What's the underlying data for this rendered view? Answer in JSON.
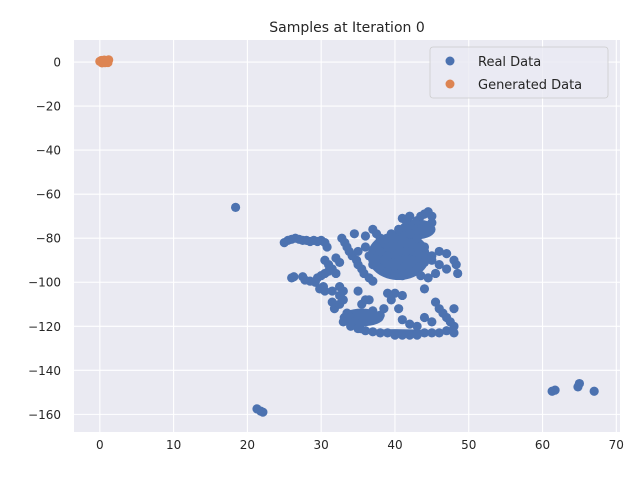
{
  "chart_data": {
    "type": "scatter",
    "title": "Samples at Iteration 0",
    "xlabel": "",
    "ylabel": "",
    "xlim": [
      -3.5,
      70.5
    ],
    "ylim": [
      -168,
      10
    ],
    "x_ticks": [
      0,
      10,
      20,
      30,
      40,
      50,
      60,
      70
    ],
    "y_ticks": [
      0,
      -20,
      -40,
      -60,
      -80,
      -100,
      -120,
      -140,
      -160
    ],
    "grid": true,
    "legend_position": "top-right",
    "colors": {
      "background": "#eaeaf2",
      "grid": "#ffffff",
      "real": "#4c72b0",
      "generated": "#dd8452"
    },
    "series": [
      {
        "name": "Real Data",
        "color": "#4c72b0",
        "points": [
          [
            18.4,
            -66
          ],
          [
            25,
            -82
          ],
          [
            25.5,
            -81
          ],
          [
            26,
            -80.5
          ],
          [
            26.5,
            -80
          ],
          [
            27,
            -80.5
          ],
          [
            27.5,
            -81
          ],
          [
            28,
            -81
          ],
          [
            28.5,
            -81.5
          ],
          [
            29,
            -81
          ],
          [
            29.5,
            -81.5
          ],
          [
            30,
            -81
          ],
          [
            30.5,
            -82
          ],
          [
            30.8,
            -84
          ],
          [
            26,
            -98
          ],
          [
            26.3,
            -97.5
          ],
          [
            27.5,
            -97.5
          ],
          [
            27.8,
            -99
          ],
          [
            28.5,
            -99.5
          ],
          [
            29.2,
            -100
          ],
          [
            29.5,
            -98
          ],
          [
            30,
            -97
          ],
          [
            30.5,
            -96
          ],
          [
            31,
            -95
          ],
          [
            29.8,
            -103
          ],
          [
            30.3,
            -102
          ],
          [
            30.5,
            -104
          ],
          [
            30.5,
            -90
          ],
          [
            31,
            -92
          ],
          [
            31.5,
            -94
          ],
          [
            32,
            -96
          ],
          [
            32,
            -89
          ],
          [
            32.5,
            -91
          ],
          [
            32.8,
            -80
          ],
          [
            33.2,
            -82
          ],
          [
            33.5,
            -84
          ],
          [
            33.8,
            -86
          ],
          [
            34.2,
            -88
          ],
          [
            34.5,
            -78
          ],
          [
            34.8,
            -90
          ],
          [
            35,
            -92
          ],
          [
            35.5,
            -94
          ],
          [
            35.8,
            -96
          ],
          [
            36,
            -79
          ],
          [
            36.5,
            -98
          ],
          [
            37,
            -99.5
          ],
          [
            31.5,
            -104
          ],
          [
            31.5,
            -109
          ],
          [
            31.8,
            -112
          ],
          [
            32.5,
            -102
          ],
          [
            32.5,
            -106
          ],
          [
            32.5,
            -110
          ],
          [
            33,
            -104
          ],
          [
            33,
            -108
          ],
          [
            33.5,
            -114
          ],
          [
            34,
            -116
          ],
          [
            34.5,
            -118
          ],
          [
            35,
            -104
          ],
          [
            35.2,
            -120
          ],
          [
            35.5,
            -110
          ],
          [
            36,
            -108
          ],
          [
            36.5,
            -108
          ],
          [
            37,
            -113
          ],
          [
            33,
            -118
          ],
          [
            34,
            -120
          ],
          [
            35,
            -121
          ],
          [
            36,
            -122
          ],
          [
            37,
            -122.5
          ],
          [
            38,
            -123
          ],
          [
            39,
            -123
          ],
          [
            40,
            -124
          ],
          [
            41,
            -124
          ],
          [
            42,
            -124
          ],
          [
            43,
            -124
          ],
          [
            44,
            -123
          ],
          [
            45,
            -123
          ],
          [
            46,
            -123
          ],
          [
            47,
            -122
          ],
          [
            48,
            -123
          ],
          [
            38,
            -115
          ],
          [
            38.5,
            -112
          ],
          [
            39,
            -105
          ],
          [
            39.5,
            -108
          ],
          [
            40,
            -105
          ],
          [
            40.5,
            -112
          ],
          [
            41,
            -106
          ],
          [
            41,
            -117
          ],
          [
            42,
            -119
          ],
          [
            43,
            -120
          ],
          [
            44,
            -116
          ],
          [
            44,
            -103
          ],
          [
            45,
            -118
          ],
          [
            45.5,
            -109
          ],
          [
            46,
            -112
          ],
          [
            46.5,
            -114
          ],
          [
            47,
            -116
          ],
          [
            47.5,
            -118
          ],
          [
            48,
            -120
          ],
          [
            48,
            -112
          ],
          [
            37,
            -76
          ],
          [
            37.5,
            -78
          ],
          [
            38,
            -80
          ],
          [
            38.5,
            -82
          ],
          [
            39,
            -84
          ],
          [
            39.5,
            -86
          ],
          [
            40,
            -88
          ],
          [
            40.5,
            -90
          ],
          [
            41,
            -71
          ],
          [
            41.5,
            -72
          ],
          [
            42,
            -70
          ],
          [
            42.5,
            -74
          ],
          [
            43,
            -72
          ],
          [
            43.5,
            -70
          ],
          [
            44,
            -69
          ],
          [
            44.5,
            -68
          ],
          [
            45,
            -70
          ],
          [
            45,
            -73
          ],
          [
            37,
            -92
          ],
          [
            38,
            -94
          ],
          [
            39,
            -95
          ],
          [
            40,
            -96
          ],
          [
            41,
            -97
          ],
          [
            42,
            -95
          ],
          [
            43,
            -93
          ],
          [
            44,
            -91
          ],
          [
            45,
            -88
          ],
          [
            46,
            -86
          ],
          [
            47,
            -87
          ],
          [
            48,
            -90
          ],
          [
            48.3,
            -92
          ],
          [
            48.5,
            -96
          ],
          [
            38,
            -86
          ],
          [
            39,
            -88
          ],
          [
            40,
            -80
          ],
          [
            41,
            -82
          ],
          [
            42,
            -78
          ],
          [
            42,
            -86
          ],
          [
            43,
            -80
          ],
          [
            43,
            -88
          ],
          [
            44,
            -76
          ],
          [
            44,
            -84
          ],
          [
            45,
            -90
          ],
          [
            46,
            -92
          ],
          [
            47,
            -94
          ],
          [
            45.5,
            -96
          ],
          [
            44.5,
            -98
          ],
          [
            43.5,
            -97
          ],
          [
            35,
            -86
          ],
          [
            36,
            -84
          ],
          [
            36.5,
            -88
          ],
          [
            37.5,
            -84
          ],
          [
            38.5,
            -90
          ],
          [
            39.5,
            -78
          ],
          [
            40.5,
            -76
          ],
          [
            41.5,
            -86
          ],
          [
            42.5,
            -90
          ],
          [
            43.5,
            -84
          ],
          [
            21.3,
            -157.5
          ],
          [
            21.8,
            -158.5
          ],
          [
            22.1,
            -159
          ],
          [
            61.3,
            -149.5
          ],
          [
            61.7,
            -149
          ],
          [
            65,
            -146
          ],
          [
            64.8,
            -147.5
          ],
          [
            67,
            -149.5
          ]
        ],
        "blobs": [
          {
            "cx": 40.5,
            "cy": -88,
            "rx": 4.2,
            "ry": 11
          },
          {
            "cx": 43,
            "cy": -76,
            "rx": 2.5,
            "ry": 4.5
          },
          {
            "cx": 35.5,
            "cy": -116,
            "rx": 3,
            "ry": 4
          },
          {
            "cx": 40,
            "cy": -122.5,
            "rx": 5.5,
            "ry": 1.2
          }
        ]
      },
      {
        "name": "Generated Data",
        "color": "#dd8452",
        "points": [
          [
            0,
            0.3
          ],
          [
            0.2,
            0.7
          ],
          [
            0.4,
            0
          ],
          [
            0.6,
            0.9
          ],
          [
            0.8,
            0.2
          ],
          [
            1,
            0.6
          ],
          [
            1.2,
            1
          ],
          [
            0.3,
            -0.4
          ],
          [
            0.7,
            -0.3
          ],
          [
            1.1,
            -0.2
          ],
          [
            0.5,
            0.4
          ],
          [
            0.9,
            0.5
          ]
        ]
      }
    ]
  }
}
